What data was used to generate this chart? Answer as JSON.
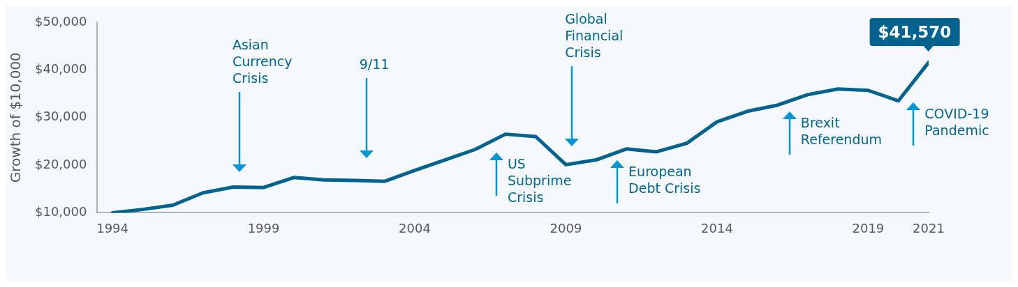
{
  "chart_data": {
    "type": "line",
    "ylabel": "Growth of $10,000",
    "x": [
      1994,
      1995,
      1996,
      1997,
      1998,
      1999,
      2000,
      2001,
      2002,
      2003,
      2004,
      2005,
      2006,
      2007,
      2008,
      2009,
      2010,
      2011,
      2012,
      2013,
      2014,
      2015,
      2016,
      2017,
      2018,
      2019,
      2020,
      2021
    ],
    "series": [
      {
        "color": "#00628f",
        "values": [
          10000,
          10700,
          11600,
          14200,
          15400,
          15300,
          17400,
          16900,
          16800,
          16600,
          18900,
          21100,
          23300,
          26500,
          26000,
          20100,
          21100,
          23400,
          22800,
          24600,
          29100,
          31300,
          32600,
          34800,
          36000,
          35700,
          33500,
          41570
        ],
        "value_labels": [
          null,
          null,
          null,
          null,
          null,
          null,
          null,
          null,
          null,
          null,
          null,
          null,
          null,
          null,
          null,
          null,
          null,
          null,
          null,
          null,
          null,
          null,
          null,
          null,
          null,
          null,
          null,
          "$41,570"
        ]
      }
    ],
    "xlim": [
      1993.5,
      2021
    ],
    "xticks": [
      1994,
      1999,
      2004,
      2009,
      2014,
      2019,
      2021
    ],
    "ylim": [
      10000,
      50000
    ],
    "yticks": [
      {
        "value": 10000,
        "label": "$10,000"
      },
      {
        "value": 20000,
        "label": "$20,000"
      },
      {
        "value": 30000,
        "label": "$30,000"
      },
      {
        "value": 40000,
        "label": "$40,000"
      },
      {
        "value": 50000,
        "label": "$50,000"
      }
    ],
    "annotations": [
      "Asian Currency Crisis",
      "9/11",
      "US Subprime Crisis",
      "Global Financial Crisis",
      "European Debt Crisis",
      "Brexit Referendum",
      "COVID-19 Pandemic"
    ],
    "grid": false,
    "legend": false,
    "marker": "none",
    "line_style": "solid"
  }
}
